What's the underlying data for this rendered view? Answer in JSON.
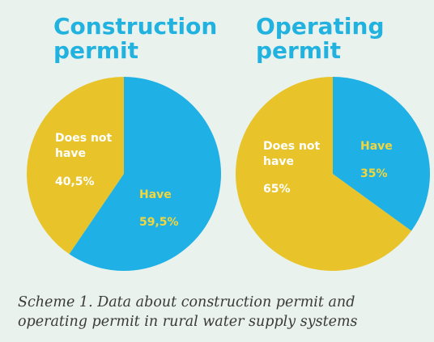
{
  "chart_data": [
    {
      "type": "pie",
      "title_lines": [
        "Construction",
        "permit"
      ],
      "slices": [
        {
          "label_lines": [
            "Does not",
            "have"
          ],
          "value_label": "40,5%",
          "value": 40.5,
          "color": "#e8c42a"
        },
        {
          "label_lines": [
            "Have"
          ],
          "value_label": "59,5%",
          "value": 59.5,
          "color": "#1fb0e6"
        }
      ]
    },
    {
      "type": "pie",
      "title_lines": [
        "Operating",
        "permit"
      ],
      "slices": [
        {
          "label_lines": [
            "Does not",
            "have"
          ],
          "value_label": "65%",
          "value": 65,
          "color": "#e8c42a"
        },
        {
          "label_lines": [
            "Have"
          ],
          "value_label": "35%",
          "value": 35,
          "color": "#1fb0e6"
        }
      ]
    }
  ],
  "caption_lines": [
    "Scheme 1. Data about construction permit and",
    "operating permit in rural water supply systems"
  ],
  "colors": {
    "title": "#22b2e0",
    "label_on_yellow": "#ffffff",
    "label_on_blue": "#f3d63a",
    "background": "#eaf2ee",
    "caption": "#3a3a3a"
  }
}
